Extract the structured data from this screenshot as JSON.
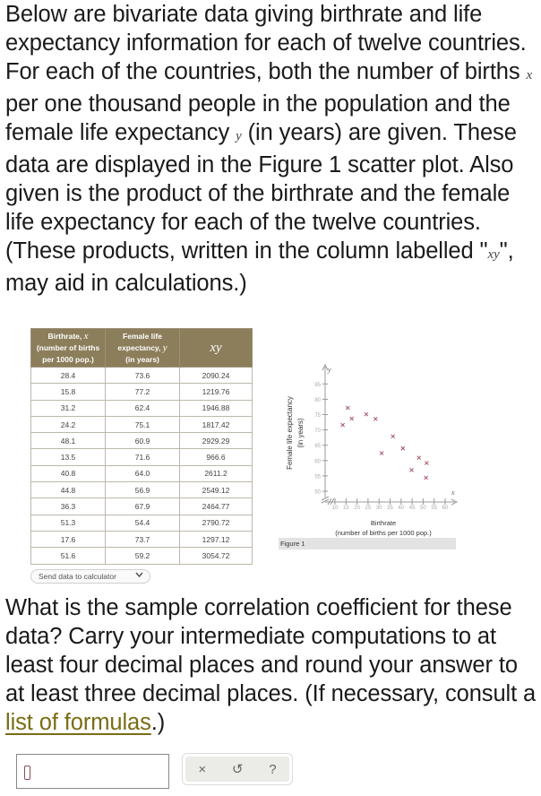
{
  "intro": {
    "part1": "Below are bivariate data giving birthrate and life expectancy information for each of twelve countries. For each of the countries, both the number of births ",
    "var_x": "x",
    "part2": " per one thousand people in the population and the female life expectancy ",
    "var_y": "y",
    "part3": " (in years) are given. These data are displayed in the Figure 1 scatter plot. Also given is the product of the birthrate and the female life expectancy for each of the twelve countries. (These products, written in the column labelled \"",
    "var_xy": "xy",
    "part4": "\", may aid in calculations.)"
  },
  "table": {
    "headers": {
      "col1_line1": "Birthrate, ",
      "col1_var": "x",
      "col1_line2": "(number of births",
      "col1_line3": "per 1000 pop.)",
      "col2_line1": "Female life",
      "col2_line2": "expectancy, ",
      "col2_var": "y",
      "col2_line3": "(in years)",
      "col3": "xy"
    },
    "rows": [
      [
        "28.4",
        "73.6",
        "2090.24"
      ],
      [
        "15.8",
        "77.2",
        "1219.76"
      ],
      [
        "31.2",
        "62.4",
        "1946.88"
      ],
      [
        "24.2",
        "75.1",
        "1817.42"
      ],
      [
        "48.1",
        "60.9",
        "2929.29"
      ],
      [
        "13.5",
        "71.6",
        "966.6"
      ],
      [
        "40.8",
        "64.0",
        "2611.2"
      ],
      [
        "44.8",
        "56.9",
        "2549.12"
      ],
      [
        "36.3",
        "67.9",
        "2464.77"
      ],
      [
        "51.3",
        "54.4",
        "2790.72"
      ],
      [
        "17.6",
        "73.7",
        "1297.12"
      ],
      [
        "51.6",
        "59.2",
        "3054.72"
      ]
    ]
  },
  "send_button": {
    "label": "Send data to calculator",
    "icon": "chevron-down-icon"
  },
  "figure": {
    "caption": "Figure 1",
    "xlabel_line1": "Birthrate",
    "xlabel_line2": "(number of births per 1000 pop.)",
    "ylabel_line1": "Female life expectancy",
    "ylabel_line2": "(in years)",
    "x_axis_var": "x",
    "y_axis_var": "y",
    "x_ticks": [
      "10",
      "15",
      "20",
      "25",
      "30",
      "35",
      "40",
      "45",
      "50",
      "55",
      "60"
    ],
    "y_ticks": [
      "50",
      "55",
      "60",
      "65",
      "70",
      "75",
      "80",
      "85"
    ],
    "marker_color": "#a04a5a"
  },
  "chart_data": {
    "type": "scatter",
    "title": "Figure 1",
    "xlabel": "Birthrate (number of births per 1000 pop.)",
    "ylabel": "Female life expectancy (in years)",
    "xlim": [
      10,
      60
    ],
    "ylim": [
      50,
      85
    ],
    "x_ticks": [
      10,
      15,
      20,
      25,
      30,
      35,
      40,
      45,
      50,
      55,
      60
    ],
    "y_ticks": [
      50,
      55,
      60,
      65,
      70,
      75,
      80,
      85
    ],
    "grid": false,
    "axis_break": true,
    "marker": "x",
    "x": [
      28.4,
      15.8,
      31.2,
      24.2,
      48.1,
      13.5,
      40.8,
      44.8,
      36.3,
      51.3,
      17.6,
      51.6
    ],
    "y": [
      73.6,
      77.2,
      62.4,
      75.1,
      60.9,
      71.6,
      64.0,
      56.9,
      67.9,
      54.4,
      73.7,
      59.2
    ]
  },
  "question": {
    "text": "What is the sample correlation coefficient for these data? Carry your intermediate computations to at least four decimal places and round your answer to at least three decimal places. (If necessary, consult a ",
    "link": "list of formulas",
    "end": ".)"
  },
  "answer": {
    "value": ""
  },
  "toolbar": {
    "clear": "×",
    "undo": "↺",
    "help": "?"
  }
}
